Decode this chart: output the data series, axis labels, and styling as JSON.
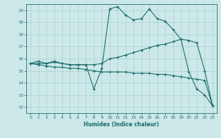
{
  "title": "",
  "xlabel": "Humidex (Indice chaleur)",
  "bg_color": "#cce8e8",
  "grid_color": "#aad0d0",
  "line_color": "#1a6b6b",
  "xlim": [
    -0.5,
    23.5
  ],
  "ylim": [
    11.5,
    20.5
  ],
  "yticks": [
    12,
    13,
    14,
    15,
    16,
    17,
    18,
    19,
    20
  ],
  "xticks": [
    0,
    1,
    2,
    3,
    4,
    5,
    6,
    7,
    8,
    9,
    10,
    11,
    12,
    13,
    14,
    15,
    16,
    17,
    18,
    19,
    20,
    21,
    22,
    23
  ],
  "series1_x": [
    0,
    1,
    2,
    3,
    4,
    5,
    6,
    7,
    8,
    9,
    10,
    11,
    12,
    13,
    14,
    15,
    16,
    17,
    18,
    19,
    20,
    21,
    22,
    23
  ],
  "series1_y": [
    15.6,
    15.8,
    15.6,
    15.8,
    15.6,
    15.5,
    15.5,
    15.5,
    13.5,
    15.2,
    20.1,
    20.3,
    19.6,
    19.2,
    19.3,
    20.1,
    19.3,
    19.1,
    18.4,
    17.6,
    14.9,
    13.5,
    13.0,
    12.1
  ],
  "series2_x": [
    0,
    1,
    2,
    3,
    4,
    5,
    6,
    7,
    8,
    9,
    10,
    11,
    12,
    13,
    14,
    15,
    16,
    17,
    18,
    19,
    20,
    21,
    22,
    23
  ],
  "series2_y": [
    15.6,
    15.6,
    15.6,
    15.7,
    15.6,
    15.5,
    15.5,
    15.5,
    15.5,
    15.6,
    16.0,
    16.1,
    16.3,
    16.5,
    16.7,
    16.9,
    17.1,
    17.2,
    17.4,
    17.6,
    17.5,
    17.3,
    15.0,
    12.1
  ],
  "series3_x": [
    0,
    1,
    2,
    3,
    4,
    5,
    6,
    7,
    8,
    9,
    10,
    11,
    12,
    13,
    14,
    15,
    16,
    17,
    18,
    19,
    20,
    21,
    22,
    23
  ],
  "series3_y": [
    15.6,
    15.5,
    15.4,
    15.3,
    15.3,
    15.2,
    15.2,
    15.1,
    15.0,
    14.9,
    14.9,
    14.9,
    14.9,
    14.8,
    14.8,
    14.8,
    14.7,
    14.7,
    14.6,
    14.5,
    14.4,
    14.3,
    14.2,
    12.1
  ]
}
